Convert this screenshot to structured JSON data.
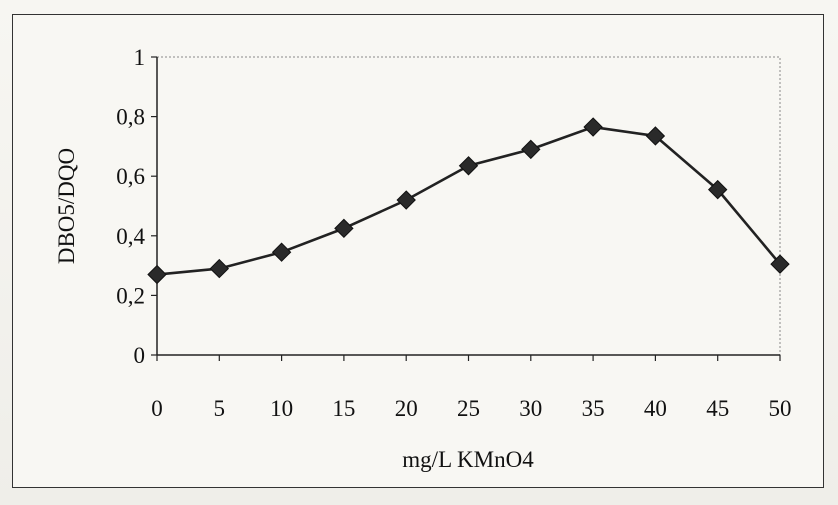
{
  "chart_data": {
    "type": "line",
    "title": "",
    "xlabel": "mg/L KMnO4",
    "ylabel": "DBO5/DQO",
    "x": [
      0,
      5,
      10,
      15,
      20,
      25,
      30,
      35,
      40,
      45,
      50
    ],
    "series": [
      {
        "values": [
          0.27,
          0.29,
          0.345,
          0.425,
          0.52,
          0.635,
          0.69,
          0.765,
          0.735,
          0.555,
          0.305
        ]
      }
    ],
    "xlim": [
      0,
      50
    ],
    "ylim": [
      0,
      1
    ],
    "xticks": [
      "0",
      "5",
      "10",
      "15",
      "20",
      "25",
      "30",
      "35",
      "40",
      "45",
      "50"
    ],
    "yticks": [
      "0",
      "0,2",
      "0,4",
      "0,6",
      "0,8",
      "1"
    ],
    "grid": false,
    "legend": "none",
    "marker": "diamond",
    "line_color": "#222222"
  }
}
